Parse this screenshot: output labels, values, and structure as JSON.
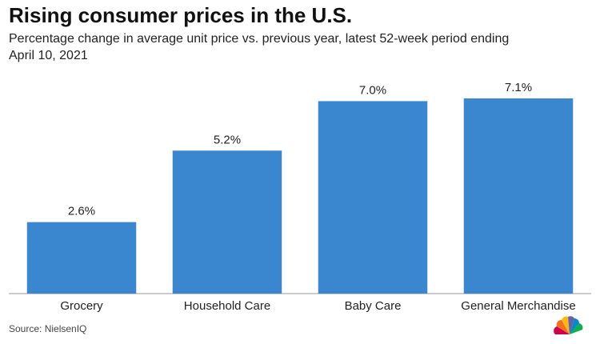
{
  "chart_data": {
    "type": "bar",
    "title": "Rising consumer prices in the U.S.",
    "subtitle": "Percentage change in average unit price vs. previous year, latest 52-week period ending April 10, 2021",
    "categories": [
      "Grocery",
      "Household Care",
      "Baby Care",
      "General Merchandise"
    ],
    "values": [
      2.6,
      5.2,
      7.0,
      7.1
    ],
    "value_labels": [
      "2.6%",
      "5.2%",
      "7.0%",
      "7.1%"
    ],
    "color": "#3a87d0",
    "source": "Source: NielsenIQ"
  }
}
